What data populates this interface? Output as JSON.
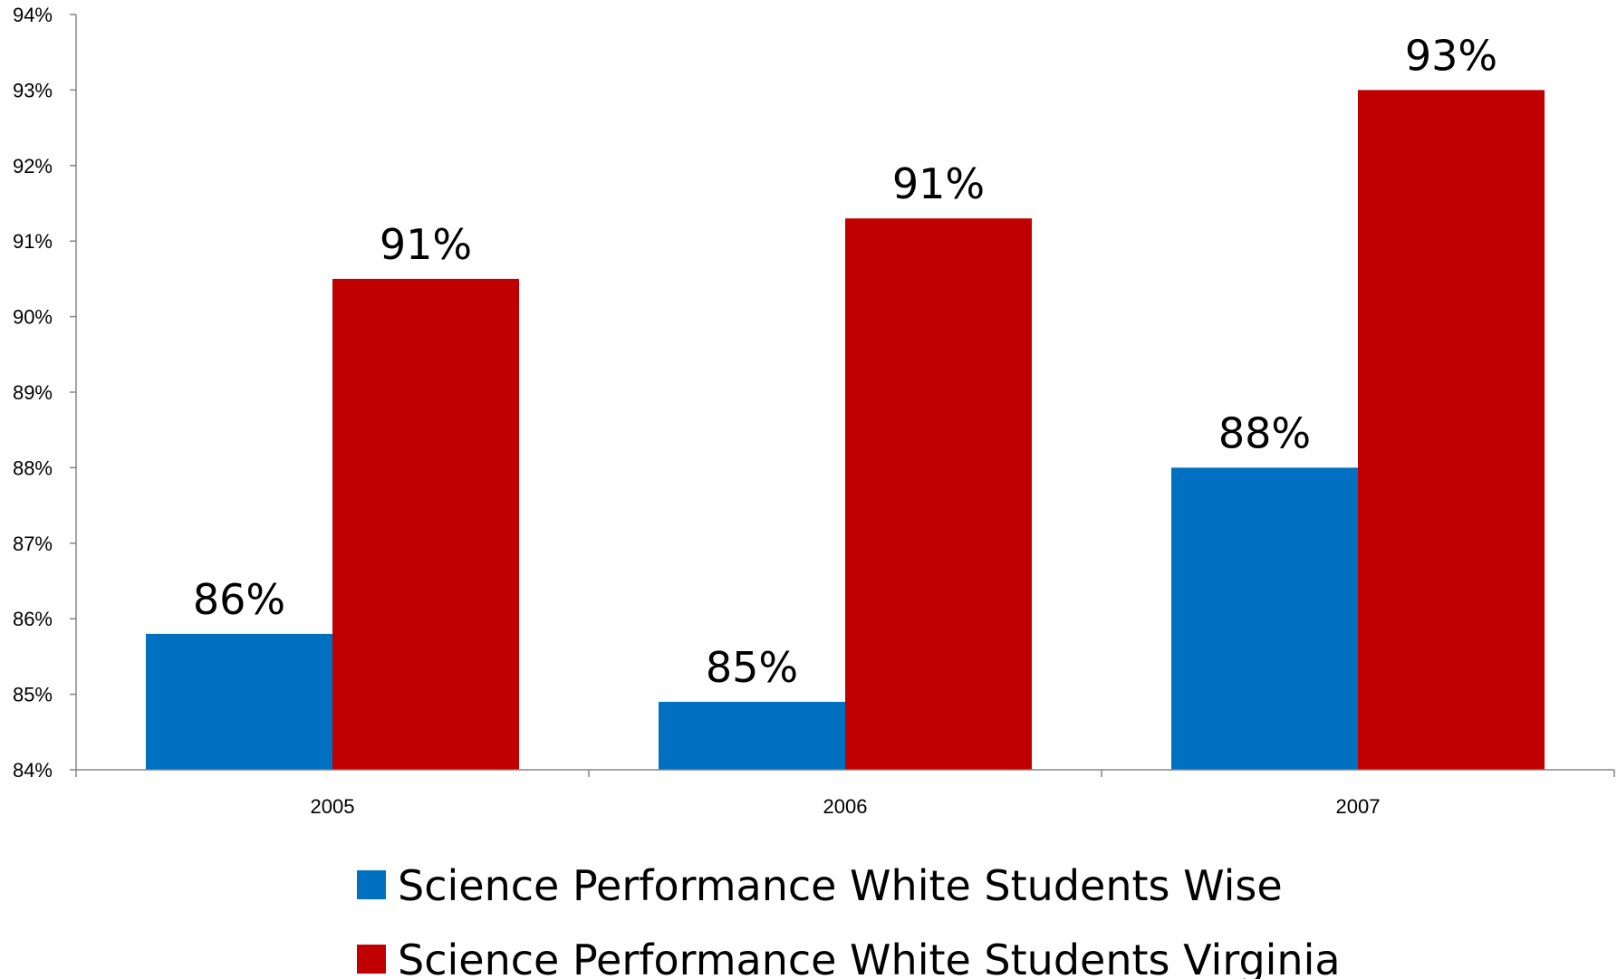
{
  "chart_data": {
    "type": "bar",
    "title": "",
    "xlabel": "",
    "ylabel": "",
    "categories": [
      "2005",
      "2006",
      "2007"
    ],
    "ylim": [
      84,
      94
    ],
    "yticks": [
      84,
      85,
      86,
      87,
      88,
      89,
      90,
      91,
      92,
      93,
      94
    ],
    "ytick_suffix": "%",
    "grid": false,
    "legend_position": "bottom",
    "series": [
      {
        "name": "Science Performance White Students Wise",
        "color": "#0070C0",
        "values": [
          85.8,
          84.9,
          88.0
        ],
        "data_labels": [
          "86%",
          "85%",
          "88%"
        ]
      },
      {
        "name": "Science Performance White Students Virginia",
        "color": "#C00000",
        "values": [
          90.5,
          91.3,
          93.0
        ],
        "data_labels": [
          "91%",
          "91%",
          "93%"
        ]
      }
    ]
  }
}
